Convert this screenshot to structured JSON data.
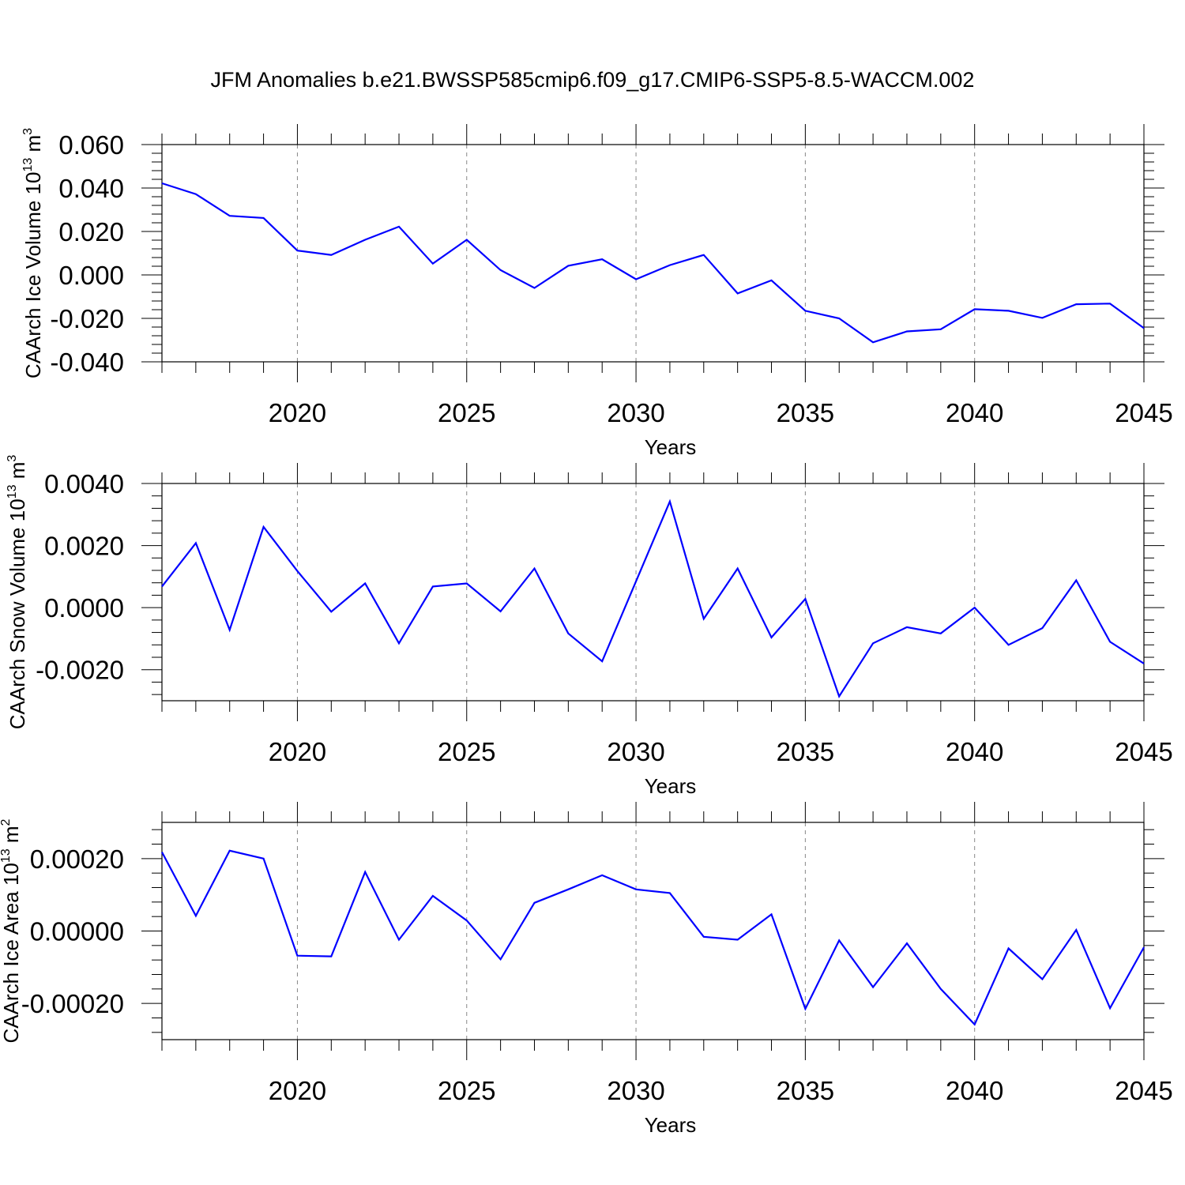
{
  "title": "JFM Anomalies b.e21.BWSSP585cmip6.f09_g17.CMIP6-SSP5-8.5-WACCM.002",
  "line_color": "#0000ff",
  "chart_data": [
    {
      "type": "line",
      "title": "",
      "xlabel": "Years",
      "ylabel_main": "CAArch Ice Volume 10",
      "ylabel_sup": "13",
      "ylabel_tail": " m",
      "ylabel_sup2": "3",
      "xlim": [
        2016,
        2045
      ],
      "ylim": [
        -0.04,
        0.06
      ],
      "xticks": [
        2020,
        2025,
        2030,
        2035,
        2040,
        2045
      ],
      "xtick_labels": [
        "2020",
        "2025",
        "2030",
        "2035",
        "2040",
        "2045"
      ],
      "yticks": [
        -0.04,
        -0.02,
        0.0,
        0.02,
        0.04,
        0.06
      ],
      "ytick_labels": [
        "-0.040",
        "-0.020",
        "0.000",
        "0.020",
        "0.040",
        "0.060"
      ],
      "x": [
        2016,
        2017,
        2018,
        2019,
        2020,
        2021,
        2022,
        2023,
        2024,
        2025,
        2026,
        2027,
        2028,
        2029,
        2030,
        2031,
        2032,
        2033,
        2034,
        2035,
        2036,
        2037,
        2038,
        2039,
        2040,
        2041,
        2042,
        2043,
        2044,
        2045
      ],
      "series": [
        {
          "values": [
            0.0422,
            0.0372,
            0.0272,
            0.0262,
            0.0112,
            0.0092,
            0.0162,
            0.0222,
            0.0052,
            0.0162,
            0.0022,
            -0.006,
            0.0042,
            0.0072,
            -0.002,
            0.0045,
            0.0092,
            -0.0085,
            -0.0025,
            -0.0165,
            -0.02,
            -0.031,
            -0.026,
            -0.025,
            -0.0158,
            -0.0165,
            -0.0198,
            -0.0135,
            -0.0132,
            -0.0245
          ]
        }
      ],
      "grid": "dashed vertical lines at labeled x ticks"
    },
    {
      "type": "line",
      "title": "",
      "xlabel": "Years",
      "ylabel_main": "CAArch Snow Volume 10",
      "ylabel_sup": "13",
      "ylabel_tail": " m",
      "ylabel_sup2": "3",
      "xlim": [
        2016,
        2045
      ],
      "ylim": [
        -0.003,
        0.004
      ],
      "xticks": [
        2020,
        2025,
        2030,
        2035,
        2040,
        2045
      ],
      "xtick_labels": [
        "2020",
        "2025",
        "2030",
        "2035",
        "2040",
        "2045"
      ],
      "yticks": [
        -0.002,
        0.0,
        0.002,
        0.004
      ],
      "ytick_labels": [
        "-0.0020",
        "0.0000",
        "0.0020",
        "0.0040"
      ],
      "x": [
        2016,
        2017,
        2018,
        2019,
        2020,
        2021,
        2022,
        2023,
        2024,
        2025,
        2026,
        2027,
        2028,
        2029,
        2030,
        2031,
        2032,
        2033,
        2034,
        2035,
        2036,
        2037,
        2038,
        2039,
        2040,
        2041,
        2042,
        2043,
        2044,
        2045
      ],
      "series": [
        {
          "values": [
            0.00068,
            0.00208,
            -0.00072,
            0.0026,
            0.00118,
            -0.00013,
            0.00078,
            -0.00115,
            0.00068,
            0.00078,
            -0.00012,
            0.00126,
            -0.00083,
            -0.00173,
            0.00085,
            0.00342,
            -0.00036,
            0.00126,
            -0.00096,
            0.00028,
            -0.00286,
            -0.00115,
            -0.00063,
            -0.00083,
            0.0,
            -0.0012,
            -0.00066,
            0.00088,
            -0.0011,
            -0.0018
          ]
        }
      ],
      "grid": "dashed vertical lines at labeled x ticks"
    },
    {
      "type": "line",
      "title": "",
      "xlabel": "Years",
      "ylabel_main": "CAArch Ice Area 10",
      "ylabel_sup": "13",
      "ylabel_tail": " m",
      "ylabel_sup2": "2",
      "xlim": [
        2016,
        2045
      ],
      "ylim": [
        -0.0003,
        0.0003
      ],
      "xticks": [
        2020,
        2025,
        2030,
        2035,
        2040,
        2045
      ],
      "xtick_labels": [
        "2020",
        "2025",
        "2030",
        "2035",
        "2040",
        "2045"
      ],
      "yticks": [
        -0.0002,
        0.0,
        0.0002
      ],
      "ytick_labels": [
        "-0.00020",
        "0.00000",
        "0.00020"
      ],
      "x": [
        2016,
        2017,
        2018,
        2019,
        2020,
        2021,
        2022,
        2023,
        2024,
        2025,
        2026,
        2027,
        2028,
        2029,
        2030,
        2031,
        2032,
        2033,
        2034,
        2035,
        2036,
        2037,
        2038,
        2039,
        2040,
        2041,
        2042,
        2043,
        2044,
        2045
      ],
      "series": [
        {
          "values": [
            0.000218,
            4.2e-05,
            0.000222,
            0.0002,
            -6.8e-05,
            -7e-05,
            0.000163,
            -2.4e-05,
            9.7e-05,
            2.9e-05,
            -7.8e-05,
            7.8e-05,
            0.000115,
            0.000154,
            0.000115,
            0.000105,
            -1.6e-05,
            -2.4e-05,
            4.6e-05,
            -0.000215,
            -2.6e-05,
            -0.000155,
            -3.4e-05,
            -0.00016,
            -0.000258,
            -4.8e-05,
            -0.000133,
            3e-06,
            -0.000213,
            -4.5e-05
          ]
        }
      ],
      "grid": "dashed vertical lines at labeled x ticks"
    }
  ]
}
